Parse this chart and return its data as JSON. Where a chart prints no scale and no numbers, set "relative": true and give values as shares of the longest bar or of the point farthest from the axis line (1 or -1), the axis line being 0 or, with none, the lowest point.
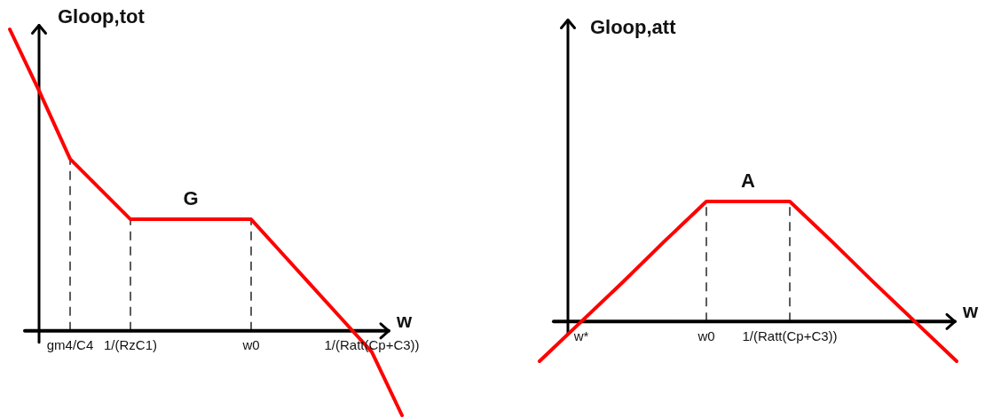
{
  "chart_data": [
    {
      "type": "line",
      "xlabel": "w",
      "ylabel": "Gloop,tot",
      "relative": true,
      "categories": [
        null,
        null,
        "gm4/C4",
        null,
        "1/(RzC1)",
        null,
        null,
        null,
        "w0",
        null,
        null,
        null,
        "1/(Ratt(Cp+C3))",
        null
      ],
      "series": [
        {
          "color": "#ff0000",
          "values": [
            1,
            0.79,
            0.57,
            0.47,
            0.37,
            0.37,
            0.37,
            0.37,
            0.37,
            0.26,
            0.15,
            0.04,
            -0.07,
            -0.28
          ]
        }
      ],
      "ref_lines": [
        {
          "axis": "x",
          "value": "gm4/C4",
          "color": "#333333",
          "line_style": "dashed"
        },
        {
          "axis": "x",
          "value": "1/(RzC1)",
          "color": "#333333",
          "line_style": "dashed"
        },
        {
          "axis": "x",
          "value": "w0",
          "color": "#333333",
          "line_style": "dashed"
        }
      ],
      "annotations": [
        {
          "text": "G",
          "y": 0.37
        }
      ]
    },
    {
      "type": "line",
      "xlabel": "w",
      "ylabel": "Gloop,att",
      "relative": true,
      "categories": [
        null,
        "w*",
        null,
        null,
        "w0",
        null,
        "1/(Ratt(Cp+C3))",
        null,
        null,
        null,
        null
      ],
      "series": [
        {
          "color": "#ff0000",
          "values": [
            -0.33,
            0,
            0.33,
            0.67,
            1,
            1,
            1,
            0.67,
            0.33,
            0,
            -0.33
          ]
        }
      ],
      "ref_lines": [
        {
          "axis": "x",
          "value": "w0",
          "color": "#333333",
          "line_style": "dashed"
        },
        {
          "axis": "x",
          "value": "1/(Ratt(Cp+C3))",
          "color": "#333333",
          "line_style": "dashed"
        }
      ],
      "annotations": [
        {
          "text": "A",
          "y": 1
        }
      ]
    }
  ]
}
